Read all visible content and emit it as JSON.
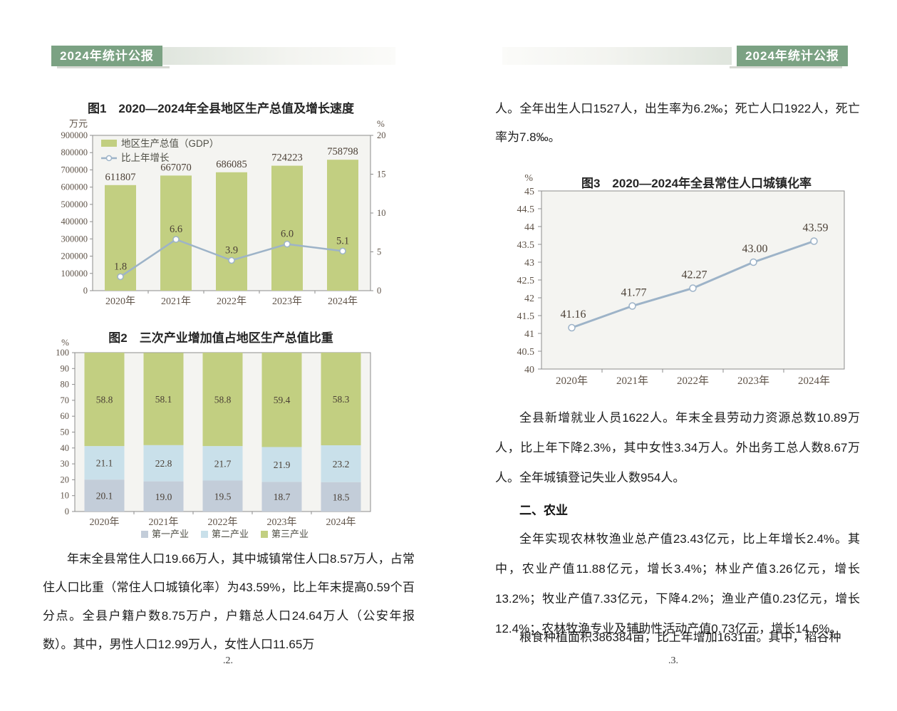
{
  "header": {
    "title": "2024年统计公报"
  },
  "colors": {
    "accent": "#7ba283",
    "strip": "#dfe5dd",
    "plot_bg": "#f4f4f1",
    "axis": "#8c8c8c",
    "tick_text": "#5f5348",
    "value_text": "#4a3f35",
    "bar_green": "#c2cf81",
    "line_blue": "#9db3c8",
    "industry1_grey": "#c3cdd9",
    "industry2_blue": "#c9e0ea"
  },
  "page2": {
    "paragraph_population": "年末全县常住人口19.66万人，其中城镇常住人口8.57万人，占常住人口比重（常住人口城镇化率）为43.59%，比上年末提高0.59个百分点。全县户籍户数8.75万户，户籍总人口24.64万人（公安年报数）。其中，男性人口12.99万人，女性人口11.65万",
    "page_number": ".2."
  },
  "page3": {
    "paragraph_top": "人。全年出生人口1527人，出生率为6.2‰；死亡人口1922人，死亡率为7.8‰。",
    "paragraph_employment": "全县新增就业人员1622人。年末全县劳动力资源总数10.89万人，比上年下降2.3%，其中女性3.34万人。外出务工总人数8.67万人。全年城镇登记失业人数954人。",
    "section_heading": "二、农业",
    "paragraph_agriculture": "全年实现农林牧渔业总产值23.43亿元，比上年增长2.4%。其中，农业产值11.88亿元，增长3.4%；林业产值3.26亿元，增长13.2%；牧业产值7.33亿元，下降4.2%；渔业产值0.23亿元，增长12.4%；农林牧渔专业及辅助性活动产值0.73亿元，增长14.6%。",
    "paragraph_grain": "粮食种植面积386384亩，比上年增加1631亩。其中，稻谷种",
    "page_number": ".3."
  },
  "chart_data": [
    {
      "id": "fig1",
      "type": "bar",
      "title": "图1　2020—2024年全县地区生产总值及增长速度",
      "categories": [
        "2020年",
        "2021年",
        "2022年",
        "2023年",
        "2024年"
      ],
      "series": [
        {
          "name": "地区生产总值（GDP）",
          "kind": "bar",
          "axis": "left",
          "values": [
            611807,
            667070,
            686085,
            724223,
            758798
          ],
          "labels": [
            "611807",
            "667070",
            "686085",
            "724223",
            "758798"
          ],
          "color": "#c2cf81"
        },
        {
          "name": "比上年增长",
          "kind": "line",
          "axis": "right",
          "values": [
            1.8,
            6.6,
            3.9,
            6.0,
            5.1
          ],
          "labels": [
            "1.8",
            "6.6",
            "3.9",
            "6.0",
            "5.1"
          ],
          "color": "#9db3c8"
        }
      ],
      "left_axis": {
        "unit": "万元",
        "min": 0,
        "max": 900000,
        "step": 100000,
        "ticks": [
          "900000",
          "800000",
          "700000",
          "600000",
          "500000",
          "400000",
          "300000",
          "200000",
          "100000",
          "0"
        ]
      },
      "right_axis": {
        "unit": "%",
        "min": 0,
        "max": 20,
        "step": 5,
        "ticks": [
          "20",
          "15",
          "10",
          "5",
          "0"
        ]
      },
      "legend_position": "top-left-inside",
      "grid": false
    },
    {
      "id": "fig2",
      "type": "bar",
      "subtype": "stacked",
      "title": "图2　三次产业增加值占地区生产总值比重",
      "categories": [
        "2020年",
        "2021年",
        "2022年",
        "2023年",
        "2024年"
      ],
      "series": [
        {
          "name": "第一产业",
          "values": [
            20.1,
            19.0,
            19.5,
            18.7,
            18.5
          ],
          "labels": [
            "20.1",
            "19.0",
            "19.5",
            "18.7",
            "18.5"
          ],
          "color": "#c3cdd9"
        },
        {
          "name": "第二产业",
          "values": [
            21.1,
            22.8,
            21.7,
            21.9,
            23.2
          ],
          "labels": [
            "21.1",
            "22.8",
            "21.7",
            "21.9",
            "23.2"
          ],
          "color": "#c9e0ea"
        },
        {
          "name": "第三产业",
          "values": [
            58.8,
            58.1,
            58.8,
            59.4,
            58.3
          ],
          "labels": [
            "58.8",
            "58.1",
            "58.8",
            "59.4",
            "58.3"
          ],
          "color": "#c2cf81"
        }
      ],
      "y_axis": {
        "unit": "%",
        "min": 0,
        "max": 100,
        "step": 10,
        "ticks": [
          "100",
          "90",
          "80",
          "70",
          "60",
          "50",
          "40",
          "30",
          "20",
          "10",
          "0"
        ]
      },
      "legend_position": "bottom",
      "grid": false
    },
    {
      "id": "fig3",
      "type": "line",
      "title": "图3　2020—2024年全县常住人口城镇化率",
      "categories": [
        "2020年",
        "2021年",
        "2022年",
        "2023年",
        "2024年"
      ],
      "series": [
        {
          "name": "常住人口城镇化率",
          "values": [
            41.16,
            41.77,
            42.27,
            43.0,
            43.59
          ],
          "labels": [
            "41.16",
            "41.77",
            "42.27",
            "43.00",
            "43.59"
          ],
          "color": "#9db3c8"
        }
      ],
      "y_axis": {
        "unit": "%",
        "min": 40,
        "max": 45,
        "step": 0.5,
        "ticks": [
          "45",
          "44.5",
          "44",
          "43.5",
          "43",
          "42.5",
          "42",
          "41.5",
          "41",
          "40.5",
          "40"
        ]
      },
      "legend_position": "none",
      "grid": false
    }
  ]
}
